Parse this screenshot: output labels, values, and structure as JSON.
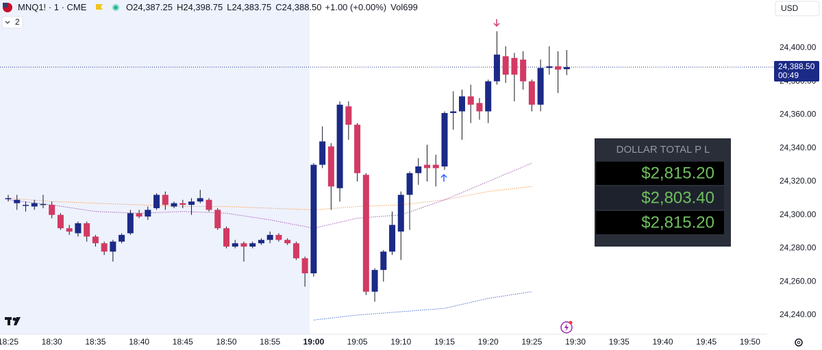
{
  "chart_data": {
    "type": "candlestick",
    "symbol": "MNQ1! · 1 · CME",
    "ohlc_header": [
      {
        "label": "O",
        "value": "24,387.25"
      },
      {
        "label": "H",
        "value": "24,398.75"
      },
      {
        "label": "L",
        "value": "24,383.75"
      },
      {
        "label": "C",
        "value": "24,388.50"
      }
    ],
    "change": "+1.00 (+0.00%)",
    "volume": "Vol699",
    "indicator_count": "2",
    "currency": "USD",
    "up_color": "#1b2a86",
    "down_color": "#d23a63",
    "candles": [
      {
        "open": 24310,
        "high": 24312,
        "low": 24308,
        "close": 24310
      },
      {
        "open": 24307,
        "high": 24312,
        "low": 24303,
        "close": 24309
      },
      {
        "open": 24306,
        "high": 24308,
        "low": 24302,
        "close": 24306
      },
      {
        "open": 24305,
        "high": 24309,
        "low": 24303,
        "close": 24307
      },
      {
        "open": 24306,
        "high": 24312,
        "low": 24304,
        "close": 24306.5
      },
      {
        "open": 24306,
        "high": 24308,
        "low": 24298,
        "close": 24300
      },
      {
        "open": 24300,
        "high": 24301,
        "low": 24291,
        "close": 24292
      },
      {
        "open": 24292,
        "high": 24294,
        "low": 24288,
        "close": 24290
      },
      {
        "open": 24289,
        "high": 24296,
        "low": 24287,
        "close": 24295
      },
      {
        "open": 24295,
        "high": 24296,
        "low": 24284,
        "close": 24287
      },
      {
        "open": 24287,
        "high": 24288,
        "low": 24281,
        "close": 24283
      },
      {
        "open": 24283,
        "high": 24284,
        "low": 24276,
        "close": 24278
      },
      {
        "open": 24278,
        "high": 24285,
        "low": 24272,
        "close": 24284
      },
      {
        "open": 24284,
        "high": 24289,
        "low": 24283,
        "close": 24288
      },
      {
        "open": 24289,
        "high": 24303,
        "low": 24288,
        "close": 24301
      },
      {
        "open": 24301,
        "high": 24303,
        "low": 24298,
        "close": 24299
      },
      {
        "open": 24299,
        "high": 24305,
        "low": 24297,
        "close": 24303
      },
      {
        "open": 24304,
        "high": 24313,
        "low": 24303,
        "close": 24312
      },
      {
        "open": 24312,
        "high": 24314,
        "low": 24303,
        "close": 24306
      },
      {
        "open": 24305,
        "high": 24308,
        "low": 24304,
        "close": 24307
      },
      {
        "open": 24307,
        "high": 24309,
        "low": 24304,
        "close": 24306
      },
      {
        "open": 24306,
        "high": 24310,
        "low": 24300,
        "close": 24308
      },
      {
        "open": 24308,
        "high": 24315,
        "low": 24307,
        "close": 24310
      },
      {
        "open": 24309,
        "high": 24310,
        "low": 24302,
        "close": 24303
      },
      {
        "open": 24303,
        "high": 24304,
        "low": 24291,
        "close": 24292
      },
      {
        "open": 24292,
        "high": 24293,
        "low": 24280,
        "close": 24281
      },
      {
        "open": 24281,
        "high": 24285,
        "low": 24280,
        "close": 24283
      },
      {
        "open": 24283,
        "high": 24284,
        "low": 24272,
        "close": 24281
      },
      {
        "open": 24281,
        "high": 24284,
        "low": 24280,
        "close": 24283
      },
      {
        "open": 24283,
        "high": 24286,
        "low": 24282,
        "close": 24285
      },
      {
        "open": 24285,
        "high": 24290,
        "low": 24283,
        "close": 24288
      },
      {
        "open": 24288,
        "high": 24289,
        "low": 24284,
        "close": 24285
      },
      {
        "open": 24285,
        "high": 24286,
        "low": 24282,
        "close": 24283
      },
      {
        "open": 24283,
        "high": 24284,
        "low": 24273,
        "close": 24274
      },
      {
        "open": 24274,
        "high": 24275,
        "low": 24257,
        "close": 24265
      },
      {
        "open": 24265,
        "high": 24331,
        "low": 24263,
        "close": 24330
      },
      {
        "open": 24330,
        "high": 24353,
        "low": 24328,
        "close": 24344
      },
      {
        "open": 24341,
        "high": 24343,
        "low": 24303,
        "close": 24317
      },
      {
        "open": 24316,
        "high": 24368,
        "low": 24308,
        "close": 24366
      },
      {
        "open": 24365,
        "high": 24368,
        "low": 24345,
        "close": 24354
      },
      {
        "open": 24354,
        "high": 24355,
        "low": 24320,
        "close": 24325
      },
      {
        "open": 24324,
        "high": 24325,
        "low": 24252,
        "close": 24254
      },
      {
        "open": 24254,
        "high": 24268,
        "low": 24248,
        "close": 24267
      },
      {
        "open": 24267,
        "high": 24279,
        "low": 24260,
        "close": 24278
      },
      {
        "open": 24278,
        "high": 24302,
        "low": 24276,
        "close": 24294
      },
      {
        "open": 24290,
        "high": 24314,
        "low": 24273,
        "close": 24312
      },
      {
        "open": 24312,
        "high": 24326,
        "low": 24291,
        "close": 24325
      },
      {
        "open": 24325,
        "high": 24334,
        "low": 24318,
        "close": 24329
      },
      {
        "open": 24330,
        "high": 24342,
        "low": 24320,
        "close": 24328
      },
      {
        "open": 24330,
        "high": 24336,
        "low": 24317,
        "close": 24328
      },
      {
        "open": 24329,
        "high": 24362,
        "low": 24327,
        "close": 24361
      },
      {
        "open": 24361,
        "high": 24374,
        "low": 24351,
        "close": 24362
      },
      {
        "open": 24362,
        "high": 24375,
        "low": 24345,
        "close": 24371
      },
      {
        "open": 24371,
        "high": 24378,
        "low": 24355,
        "close": 24366
      },
      {
        "open": 24367,
        "high": 24370,
        "low": 24357,
        "close": 24362
      },
      {
        "open": 24362,
        "high": 24381,
        "low": 24355,
        "close": 24380
      },
      {
        "open": 24380,
        "high": 24410,
        "low": 24378,
        "close": 24396
      },
      {
        "open": 24395,
        "high": 24401,
        "low": 24379,
        "close": 24384
      },
      {
        "open": 24394,
        "high": 24397,
        "low": 24368,
        "close": 24384
      },
      {
        "open": 24393,
        "high": 24398,
        "low": 24375,
        "close": 24380
      },
      {
        "open": 24380,
        "high": 24381,
        "low": 24362,
        "close": 24366
      },
      {
        "open": 24366,
        "high": 24393,
        "low": 24362,
        "close": 24388
      },
      {
        "open": 24388,
        "high": 24401,
        "low": 24384,
        "close": 24389
      },
      {
        "open": 24389,
        "high": 24398,
        "low": 24373,
        "close": 24387
      },
      {
        "open": 24387.25,
        "high": 24398.75,
        "low": 24383.75,
        "close": 24388.5
      }
    ],
    "moving_averages": [
      {
        "color": "#f5a25d",
        "values": [
          24310,
          24308,
          24307,
          24306,
          24305,
          24305,
          24304,
          24303,
          24305,
          24306,
          24309,
          24314,
          24317
        ]
      },
      {
        "color": "#a65fb5",
        "values": [
          24309,
          24306,
          24302,
          24301,
          24302,
          24301,
          24297,
          24292,
          24298,
          24300,
          24309,
          24320,
          24331
        ]
      },
      {
        "color": "#4b6fd6",
        "values": [
          null,
          null,
          null,
          null,
          null,
          null,
          null,
          24237,
          24240,
          24242,
          24244,
          24250,
          24254
        ]
      }
    ],
    "xticks": [
      "18:25",
      "18:30",
      "18:35",
      "18:40",
      "18:45",
      "18:50",
      "18:55",
      "19:00",
      "19:05",
      "19:10",
      "19:15",
      "19:20",
      "19:25",
      "19:30",
      "19:35",
      "19:40",
      "19:45",
      "19:50"
    ],
    "ylim": [
      24228.5,
      24428.7
    ],
    "yticks": [
      {
        "value": 24240,
        "label": "24,240.00"
      },
      {
        "value": 24260,
        "label": "24,260.00"
      },
      {
        "value": 24280,
        "label": "24,280.00"
      },
      {
        "value": 24300,
        "label": "24,300.00"
      },
      {
        "value": 24320,
        "label": "24,320.00"
      },
      {
        "value": 24340,
        "label": "24,340.00"
      },
      {
        "value": 24360,
        "label": "24,360.00"
      },
      {
        "value": 24380,
        "label": "24,380.00"
      },
      {
        "value": 24400,
        "label": "24,400.00"
      }
    ],
    "last_price": {
      "value": 24388.5,
      "label": "24,388.50",
      "countdown": "00:49"
    },
    "pnl_panel": {
      "title": "DOLLAR TOTAL P L",
      "rows": [
        "$2,815.20",
        "$2,803.40",
        "$2,815.20"
      ]
    }
  }
}
